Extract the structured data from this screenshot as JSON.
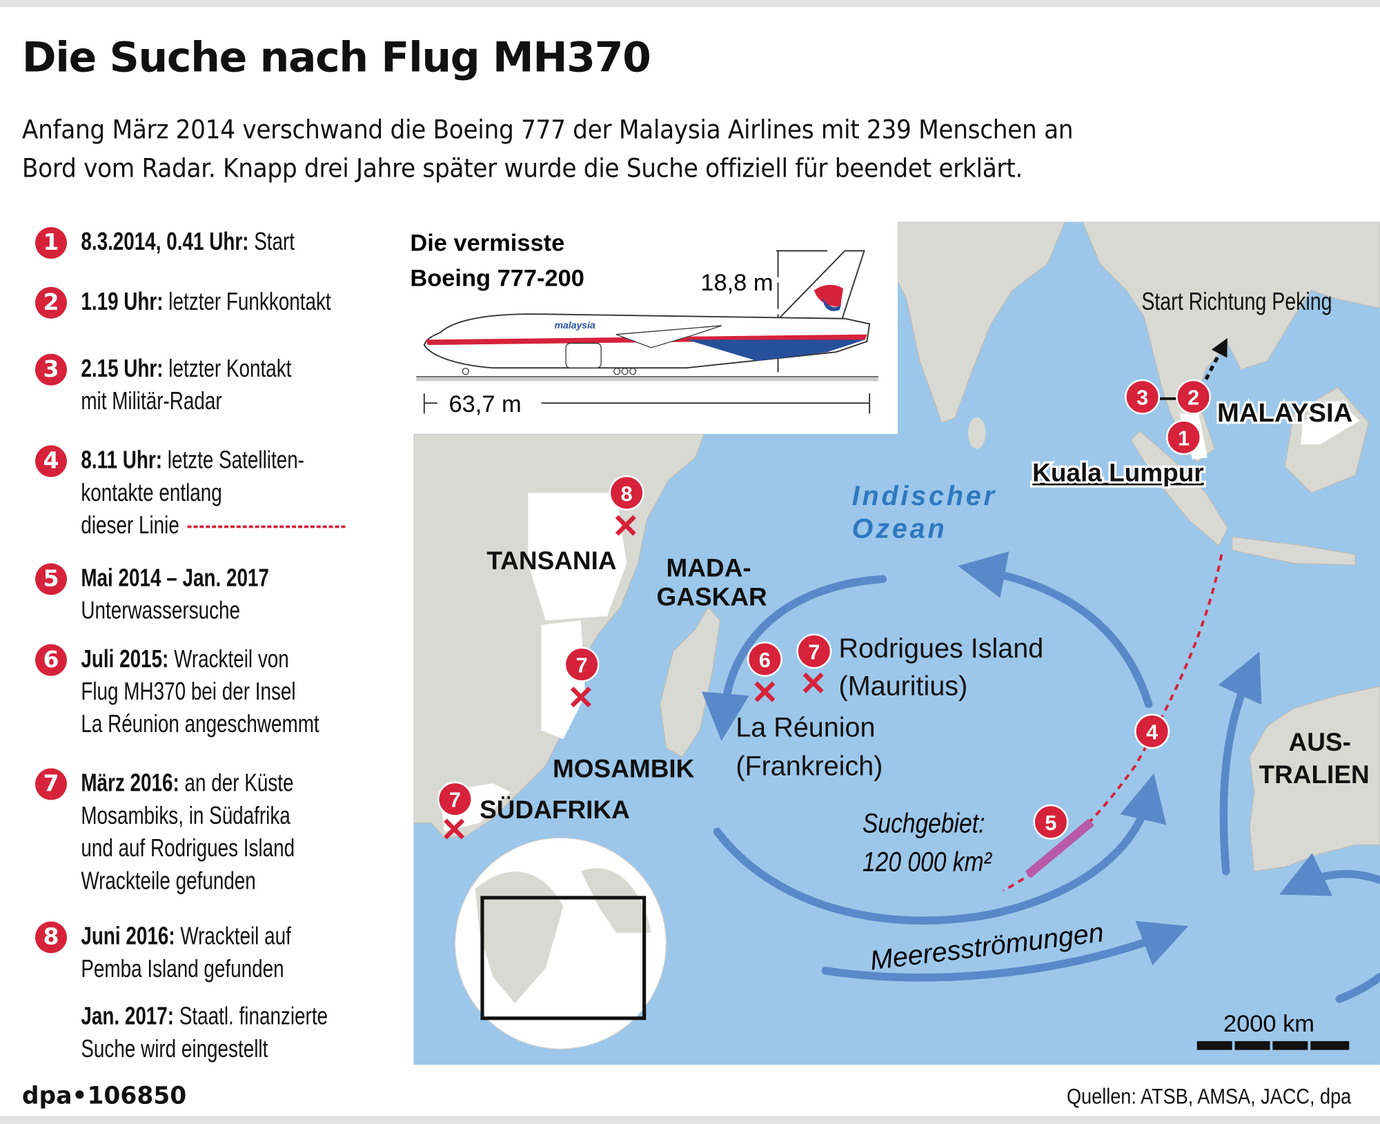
{
  "title": "Die Suche nach Flug MH370",
  "subtitle": [
    "Anfang März 2014 verschwand die Boeing 777 der Malaysia Airlines mit 239 Menschen an",
    "Bord vom Radar. Knapp drei Jahre später wurde die Suche offiziell für beendet erklärt."
  ],
  "timeline": [
    {
      "num": "1",
      "lines": [
        {
          "b": "8.3.2014, 0.41 Uhr:",
          "t": " Start"
        }
      ]
    },
    {
      "num": "2",
      "lines": [
        {
          "b": "1.19 Uhr:",
          "t": " letzter Funkkontakt"
        }
      ]
    },
    {
      "num": "3",
      "lines": [
        {
          "b": "2.15 Uhr:",
          "t": " letzter Kontakt"
        },
        {
          "b": "",
          "t": "mit Militär-Radar"
        }
      ]
    },
    {
      "num": "4",
      "lines": [
        {
          "b": "8.11 Uhr:",
          "t": " letzte Satelliten-"
        },
        {
          "b": "",
          "t": "kontakte entlang"
        },
        {
          "b": "",
          "t": "dieser Linie"
        }
      ]
    },
    {
      "num": "5",
      "lines": [
        {
          "b": "Mai 2014 – Jan. 2017",
          "t": ""
        },
        {
          "b": "",
          "t": "Unterwassersuche"
        }
      ]
    },
    {
      "num": "6",
      "lines": [
        {
          "b": "Juli 2015:",
          "t": " Wrackteil von"
        },
        {
          "b": "",
          "t": "Flug MH370 bei der Insel"
        },
        {
          "b": "",
          "t": "La Réunion angeschwemmt"
        }
      ]
    },
    {
      "num": "7",
      "lines": [
        {
          "b": "März 2016:",
          "t": " an der Küste"
        },
        {
          "b": "",
          "t": "Mosambiks, in Südafrika"
        },
        {
          "b": "",
          "t": "und auf Rodrigues Island"
        },
        {
          "b": "",
          "t": "Wrackteile gefunden"
        }
      ]
    },
    {
      "num": "8",
      "lines": [
        {
          "b": "Juni 2016:",
          "t": " Wrackteil auf"
        },
        {
          "b": "",
          "t": "Pemba Island gefunden"
        }
      ]
    },
    {
      "num": "",
      "lines": [
        {
          "b": "Jan. 2017:",
          "t": " Staatl. finanzierte"
        },
        {
          "b": "",
          "t": "Suche wird eingestellt"
        }
      ]
    }
  ],
  "plane": {
    "title": [
      "Die vermisste",
      "Boeing 777-200"
    ],
    "height": "18,8 m",
    "length": "63,7 m",
    "livery": "malaysia"
  },
  "map": {
    "ocean": [
      "Indischer",
      "Ozean"
    ],
    "start_direction": "Start Richtung Peking",
    "malaysia": "MALAYSIA",
    "kuala_lumpur": "Kuala Lumpur",
    "tansania": "TANSANIA",
    "madagaskar": [
      "MADA-",
      "GASKAR"
    ],
    "mosambik": "MOSAMBIK",
    "suedafrika": "SÜDAFRIKA",
    "australien": [
      "AUS-",
      "TRALIEN"
    ],
    "rodrigues": [
      "Rodrigues Island",
      "(Mauritius)"
    ],
    "reunion": [
      "La Réunion",
      "(Frankreich)"
    ],
    "search_area": [
      "Suchgebiet:",
      "120 000 km²"
    ],
    "currents": "Meeresströmungen",
    "scale": "2000 km",
    "markers": [
      "1",
      "2",
      "3",
      "4",
      "5",
      "6",
      "7",
      "8"
    ],
    "colors": {
      "ocean": "#9cc7ea",
      "land": "#d9d9d4",
      "marker": "#d6223a",
      "current": "#5b88c8",
      "search": "#b85aa6",
      "ocean_label": "#2f78bf"
    }
  },
  "footer": {
    "agency": "dpa•106850",
    "sources": "Quellen: ATSB, AMSA, JACC, dpa"
  }
}
